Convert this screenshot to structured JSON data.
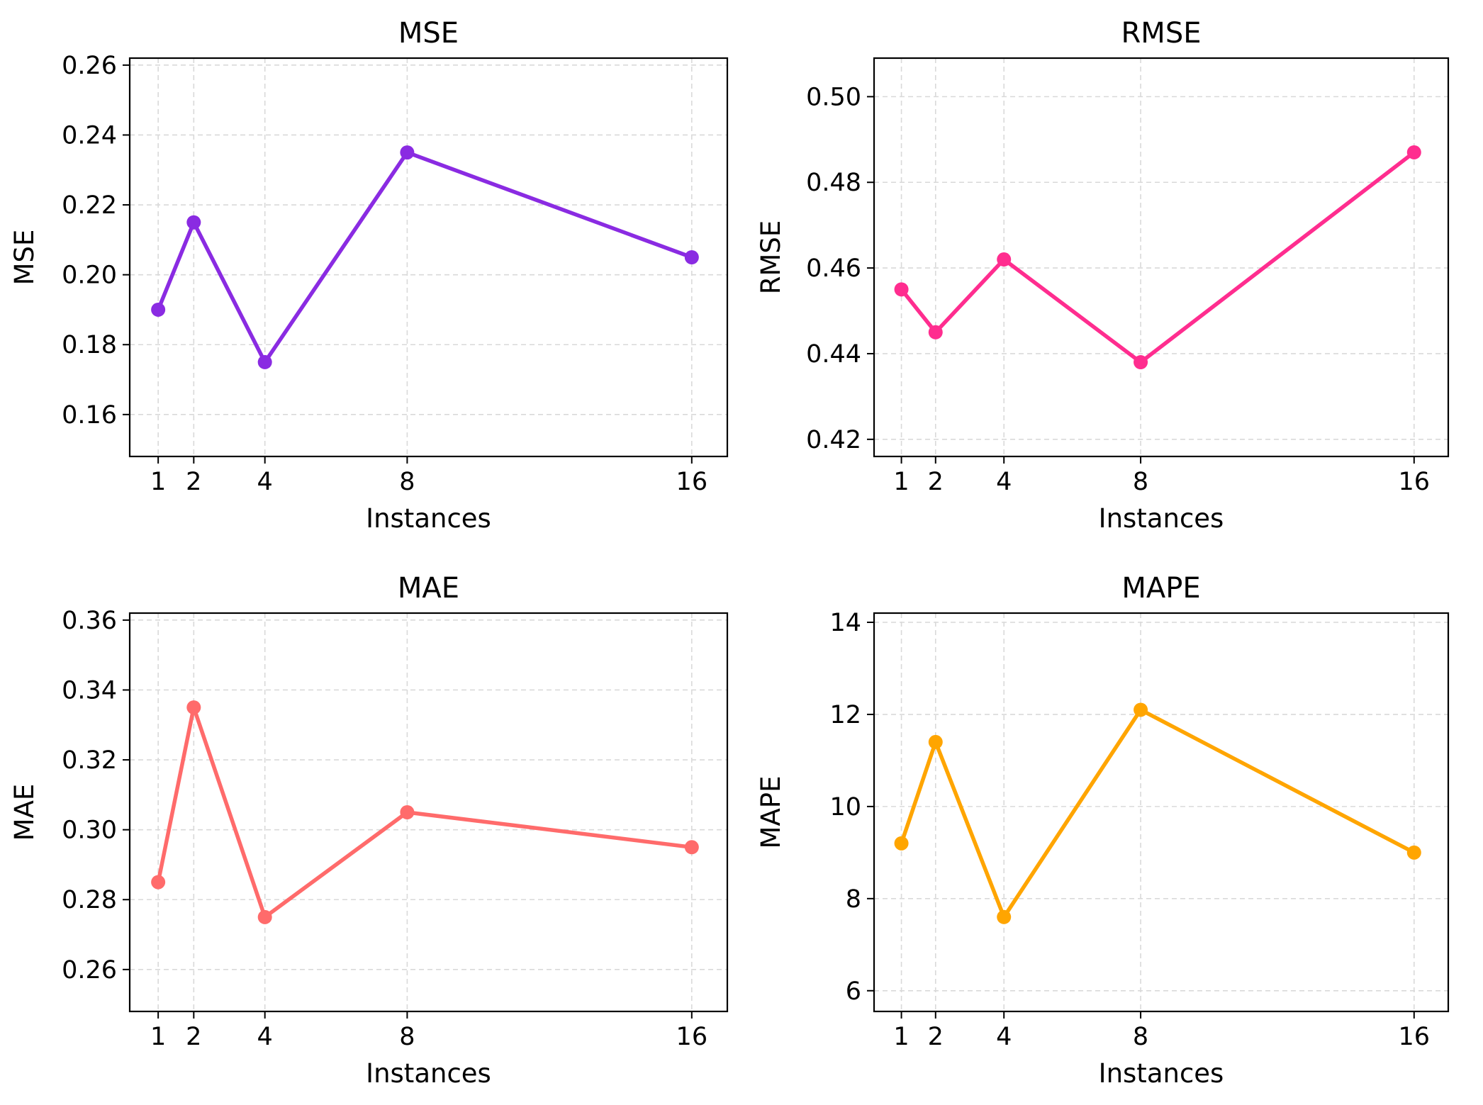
{
  "figure": {
    "layout": "2x2 grid"
  },
  "chart_data": [
    {
      "type": "line",
      "title": "MSE",
      "xlabel": "Instances",
      "ylabel": "MSE",
      "x": [
        1,
        2,
        4,
        8,
        16
      ],
      "x_ticks": [
        "1",
        "2",
        "4",
        "8",
        "16"
      ],
      "xlim": [
        0.2,
        17.0
      ],
      "y_ticks": [
        "0.16",
        "0.18",
        "0.20",
        "0.22",
        "0.24",
        "0.26"
      ],
      "ylim": [
        0.148,
        0.262
      ],
      "grid": true,
      "color": "#8a2be2",
      "series": [
        {
          "name": "MSE",
          "values": [
            0.19,
            0.215,
            0.175,
            0.235,
            0.205
          ]
        }
      ]
    },
    {
      "type": "line",
      "title": "RMSE",
      "xlabel": "Instances",
      "ylabel": "RMSE",
      "x": [
        1,
        2,
        4,
        8,
        16
      ],
      "x_ticks": [
        "1",
        "2",
        "4",
        "8",
        "16"
      ],
      "xlim": [
        0.2,
        17.0
      ],
      "y_ticks": [
        "0.42",
        "0.44",
        "0.46",
        "0.48",
        "0.50"
      ],
      "ylim": [
        0.416,
        0.509
      ],
      "grid": true,
      "color": "#ff2d8f",
      "series": [
        {
          "name": "RMSE",
          "values": [
            0.455,
            0.445,
            0.462,
            0.438,
            0.487
          ]
        }
      ]
    },
    {
      "type": "line",
      "title": "MAE",
      "xlabel": "Instances",
      "ylabel": "MAE",
      "x": [
        1,
        2,
        4,
        8,
        16
      ],
      "x_ticks": [
        "1",
        "2",
        "4",
        "8",
        "16"
      ],
      "xlim": [
        0.2,
        17.0
      ],
      "y_ticks": [
        "0.26",
        "0.28",
        "0.30",
        "0.32",
        "0.34",
        "0.36"
      ],
      "ylim": [
        0.248,
        0.362
      ],
      "grid": true,
      "color": "#ff6b6b",
      "series": [
        {
          "name": "MAE",
          "values": [
            0.285,
            0.335,
            0.275,
            0.305,
            0.295
          ]
        }
      ]
    },
    {
      "type": "line",
      "title": "MAPE",
      "xlabel": "Instances",
      "ylabel": "MAPE",
      "x": [
        1,
        2,
        4,
        8,
        16
      ],
      "x_ticks": [
        "1",
        "2",
        "4",
        "8",
        "16"
      ],
      "xlim": [
        0.2,
        17.0
      ],
      "y_ticks": [
        "6",
        "8",
        "10",
        "12",
        "14"
      ],
      "ylim": [
        5.55,
        14.2
      ],
      "grid": true,
      "color": "#ffa500",
      "series": [
        {
          "name": "MAPE",
          "values": [
            9.2,
            11.4,
            7.6,
            12.1,
            9.0
          ]
        }
      ]
    }
  ]
}
